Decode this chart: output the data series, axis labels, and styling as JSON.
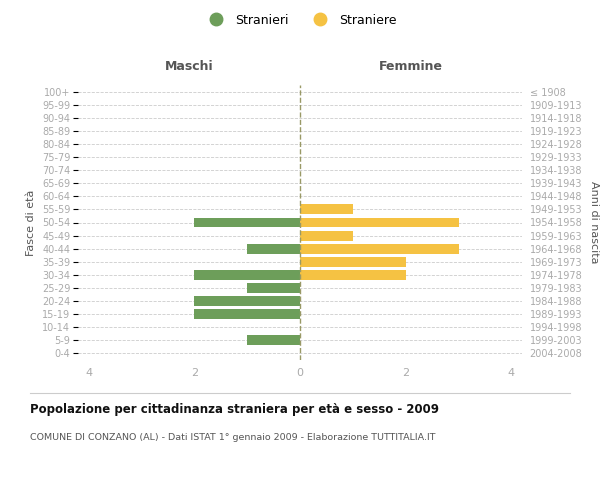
{
  "age_groups": [
    "0-4",
    "5-9",
    "10-14",
    "15-19",
    "20-24",
    "25-29",
    "30-34",
    "35-39",
    "40-44",
    "45-49",
    "50-54",
    "55-59",
    "60-64",
    "65-69",
    "70-74",
    "75-79",
    "80-84",
    "85-89",
    "90-94",
    "95-99",
    "100+"
  ],
  "birth_years": [
    "2004-2008",
    "1999-2003",
    "1994-1998",
    "1989-1993",
    "1984-1988",
    "1979-1983",
    "1974-1978",
    "1969-1973",
    "1964-1968",
    "1959-1963",
    "1954-1958",
    "1949-1953",
    "1944-1948",
    "1939-1943",
    "1934-1938",
    "1929-1933",
    "1924-1928",
    "1919-1923",
    "1914-1918",
    "1909-1913",
    "≤ 1908"
  ],
  "maschi": [
    0,
    1,
    0,
    2,
    2,
    1,
    2,
    0,
    1,
    0,
    2,
    0,
    0,
    0,
    0,
    0,
    0,
    0,
    0,
    0,
    0
  ],
  "femmine": [
    0,
    0,
    0,
    0,
    0,
    0,
    2,
    2,
    3,
    1,
    3,
    1,
    0,
    0,
    0,
    0,
    0,
    0,
    0,
    0,
    0
  ],
  "maschi_color": "#6d9e5a",
  "femmine_color": "#f5c243",
  "grid_color": "#cccccc",
  "zero_line_color": "#999966",
  "title": "Popolazione per cittadinanza straniera per età e sesso - 2009",
  "subtitle": "COMUNE DI CONZANO (AL) - Dati ISTAT 1° gennaio 2009 - Elaborazione TUTTITALIA.IT",
  "ylabel_left": "Fasce di età",
  "ylabel_right": "Anni di nascita",
  "header_left": "Maschi",
  "header_right": "Femmine",
  "legend_maschi": "Stranieri",
  "legend_femmine": "Straniere",
  "xlim": 4.2,
  "bar_height": 0.75,
  "tick_label_color": "#aaaaaa",
  "header_color": "#555555",
  "title_color": "#111111",
  "subtitle_color": "#555555"
}
